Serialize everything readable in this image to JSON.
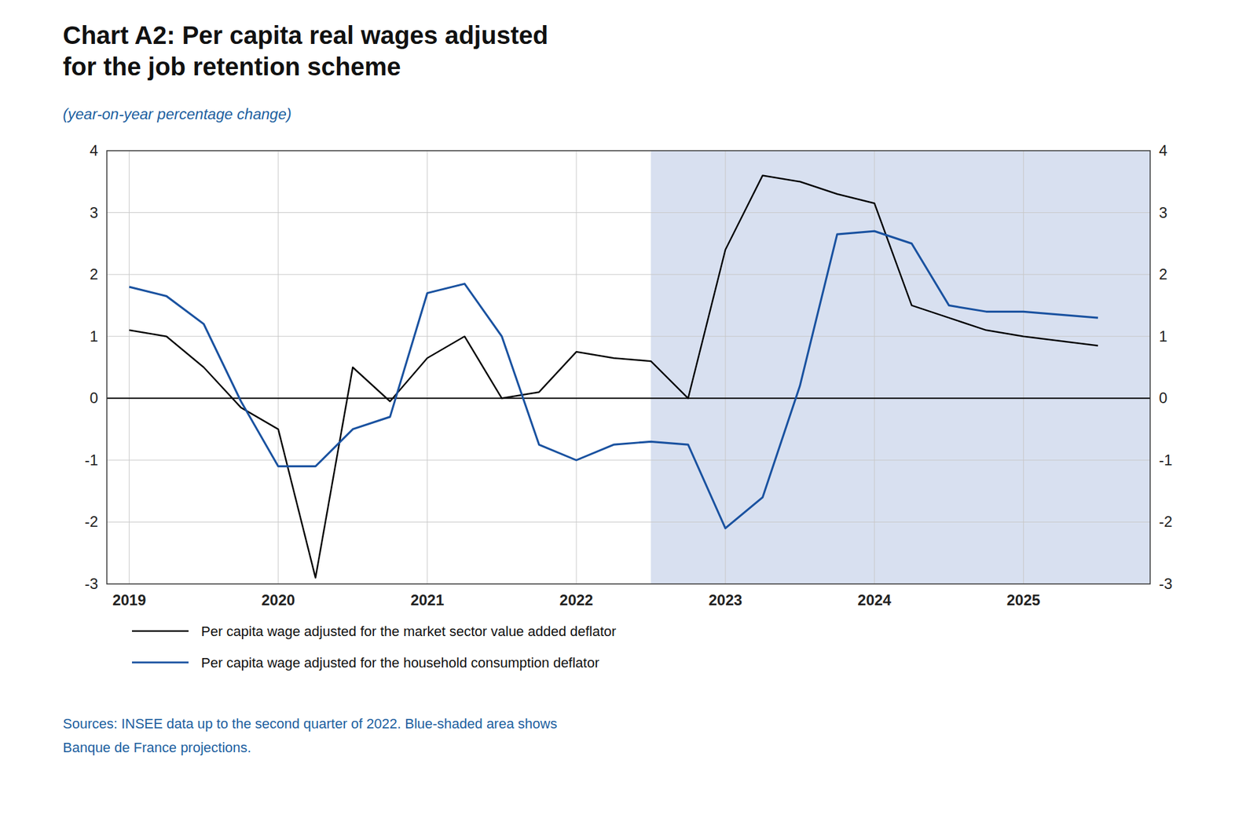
{
  "chart_data": {
    "type": "line",
    "title": [
      "Chart A2: Per capita real wages adjusted",
      "for the job retention scheme"
    ],
    "subtitle": "(year-on-year percentage change)",
    "annotations": [
      "Sources: INSEE data up to the second quarter of 2022. Blue-shaded area shows",
      "Banque de France projections."
    ],
    "shaded_range": [
      2022.5,
      2026.0
    ],
    "x": [
      2019.0,
      2019.25,
      2019.5,
      2019.75,
      2020.0,
      2020.25,
      2020.5,
      2020.75,
      2021.0,
      2021.25,
      2021.5,
      2021.75,
      2022.0,
      2022.25,
      2022.5,
      2022.75,
      2023.0,
      2023.25,
      2023.5,
      2023.75,
      2024.0,
      2024.25,
      2024.5,
      2024.75,
      2025.0,
      2025.5
    ],
    "series": [
      {
        "name": "Per capita wage adjusted for the market sector value added deflator",
        "color": "#000000",
        "values": [
          1.1,
          1.0,
          0.5,
          -0.15,
          -0.5,
          -2.9,
          0.5,
          -0.05,
          0.65,
          1.0,
          0.0,
          0.1,
          0.75,
          0.65,
          0.6,
          0.0,
          2.4,
          3.6,
          3.5,
          3.3,
          3.15,
          1.5,
          1.3,
          1.1,
          1.0,
          0.85
        ]
      },
      {
        "name": "Per capita wage adjusted for the household consumption deflator",
        "color": "#1a52a0",
        "values": [
          1.8,
          1.65,
          1.2,
          -0.05,
          -1.1,
          -1.1,
          -0.5,
          -0.3,
          1.7,
          1.85,
          1.0,
          -0.75,
          -1.0,
          -0.75,
          -0.7,
          -0.75,
          -2.1,
          -1.6,
          0.2,
          2.65,
          2.7,
          2.5,
          1.5,
          1.4,
          1.4,
          1.3
        ]
      }
    ],
    "xlim": [
      2018.85,
      2025.85
    ],
    "xticks": [
      2019,
      2020,
      2021,
      2022,
      2023,
      2024,
      2025
    ],
    "ylim": [
      -3,
      4
    ],
    "yticks": [
      -3,
      -2,
      -1,
      0,
      1,
      2,
      3,
      4
    ],
    "y2lim": [
      -3,
      4
    ],
    "y2ticks": [
      -3,
      -2,
      -1,
      0,
      1,
      2,
      3,
      4
    ],
    "grid": true,
    "legend": "bottom"
  }
}
